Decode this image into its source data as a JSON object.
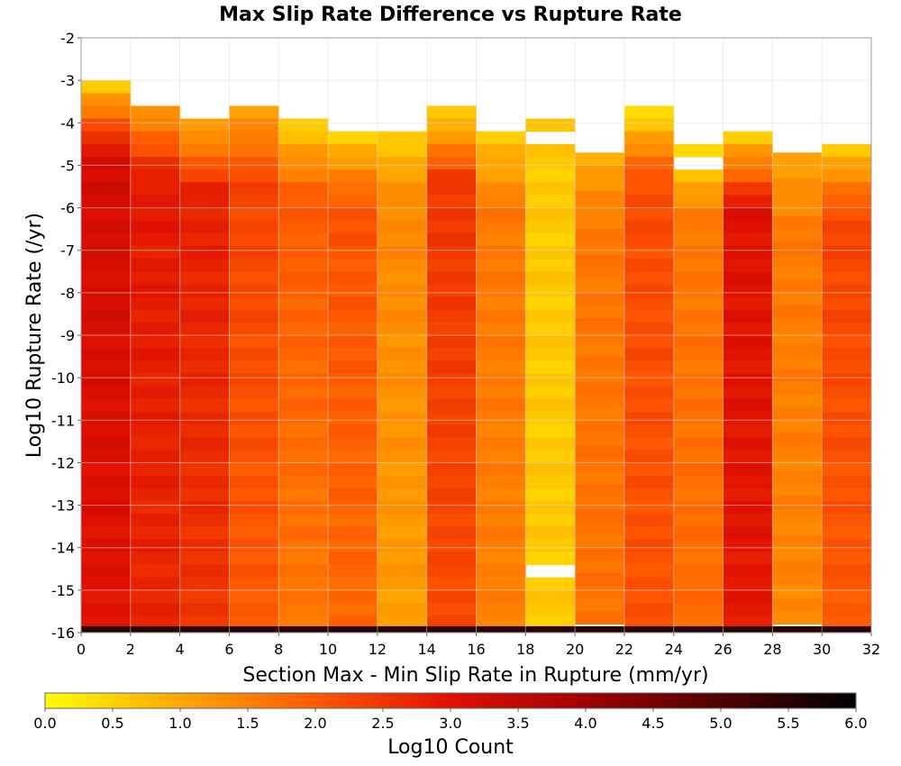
{
  "chart_data": {
    "type": "heatmap",
    "title": "Max Slip Rate Difference vs Rupture Rate",
    "xlabel": "Section Max - Min Slip Rate in Rupture (mm/yr)",
    "ylabel": "Log10 Rupture Rate (/yr)",
    "xlim": [
      0,
      32
    ],
    "ylim": [
      -16,
      -2
    ],
    "x_ticks": [
      "0",
      "2",
      "4",
      "6",
      "8",
      "10",
      "12",
      "14",
      "16",
      "18",
      "20",
      "22",
      "24",
      "26",
      "28",
      "30",
      "32"
    ],
    "y_ticks": [
      "-2",
      "-3",
      "-4",
      "-5",
      "-6",
      "-7",
      "-8",
      "-9",
      "-10",
      "-11",
      "-12",
      "-13",
      "-14",
      "-15",
      "-16"
    ],
    "colorbar": {
      "label": "Log10 Count",
      "min": 0.0,
      "max": 6.0,
      "ticks": [
        "0.0",
        "0.5",
        "1.0",
        "1.5",
        "2.0",
        "2.5",
        "3.0",
        "3.5",
        "4.0",
        "4.5",
        "5.0",
        "5.5",
        "6.0"
      ],
      "colors": [
        "#ffff00",
        "#ffa500",
        "#ff5a00",
        "#e01000",
        "#a00000",
        "#500000",
        "#000000"
      ]
    },
    "x_bin_width": 2,
    "y_bin_height": 0.3,
    "grid": true,
    "columns": [
      {
        "x0": 0,
        "top": -3.0,
        "vtop": 0.7,
        "vmid": 3.2,
        "vbot": 3.0
      },
      {
        "x0": 2,
        "top": -3.6,
        "vtop": 1.3,
        "vmid": 2.9,
        "vbot": 2.7
      },
      {
        "x0": 4,
        "top": -3.9,
        "vtop": 1.0,
        "vmid": 2.8,
        "vbot": 2.5
      },
      {
        "x0": 6,
        "top": -3.6,
        "vtop": 1.1,
        "vmid": 2.3,
        "vbot": 2.0
      },
      {
        "x0": 8,
        "top": -3.9,
        "vtop": 0.5,
        "vmid": 2.0,
        "vbot": 1.6
      },
      {
        "x0": 10,
        "top": -4.2,
        "vtop": 0.6,
        "vmid": 2.1,
        "vbot": 1.8
      },
      {
        "x0": 12,
        "top": -4.2,
        "vtop": 0.6,
        "vmid": 1.4,
        "vbot": 1.1
      },
      {
        "x0": 14,
        "top": -3.6,
        "vtop": 0.5,
        "vmid": 2.5,
        "vbot": 2.2
      },
      {
        "x0": 16,
        "top": -4.2,
        "vtop": 0.6,
        "vmid": 1.6,
        "vbot": 1.5
      },
      {
        "x0": 18,
        "top": -3.9,
        "vtop": 0.6,
        "vmid": 0.6,
        "vbot": 0.6,
        "gaps": [
          [
            -4.2,
            -4.5
          ],
          [
            -14.4,
            -14.7
          ]
        ]
      },
      {
        "x0": 20,
        "top": -4.7,
        "vtop": 1.0,
        "vmid": 1.6,
        "vbot": 1.7
      },
      {
        "x0": 22,
        "top": -3.6,
        "vtop": 0.4,
        "vmid": 2.2,
        "vbot": 2.1
      },
      {
        "x0": 24,
        "top": -4.5,
        "vtop": 0.3,
        "vmid": 1.6,
        "vbot": 1.8,
        "gaps": [
          [
            -4.7,
            -5.0
          ]
        ]
      },
      {
        "x0": 26,
        "top": -4.2,
        "vtop": 0.6,
        "vmid": 3.0,
        "vbot": 2.9
      },
      {
        "x0": 28,
        "top": -4.7,
        "vtop": 1.0,
        "vmid": 1.6,
        "vbot": 1.4
      },
      {
        "x0": 30,
        "top": -4.5,
        "vtop": 0.7,
        "vmid": 2.3,
        "vbot": 2.0
      }
    ],
    "bottom_row": {
      "y0": -16.0,
      "y1": -15.85,
      "value": 5.5
    }
  }
}
